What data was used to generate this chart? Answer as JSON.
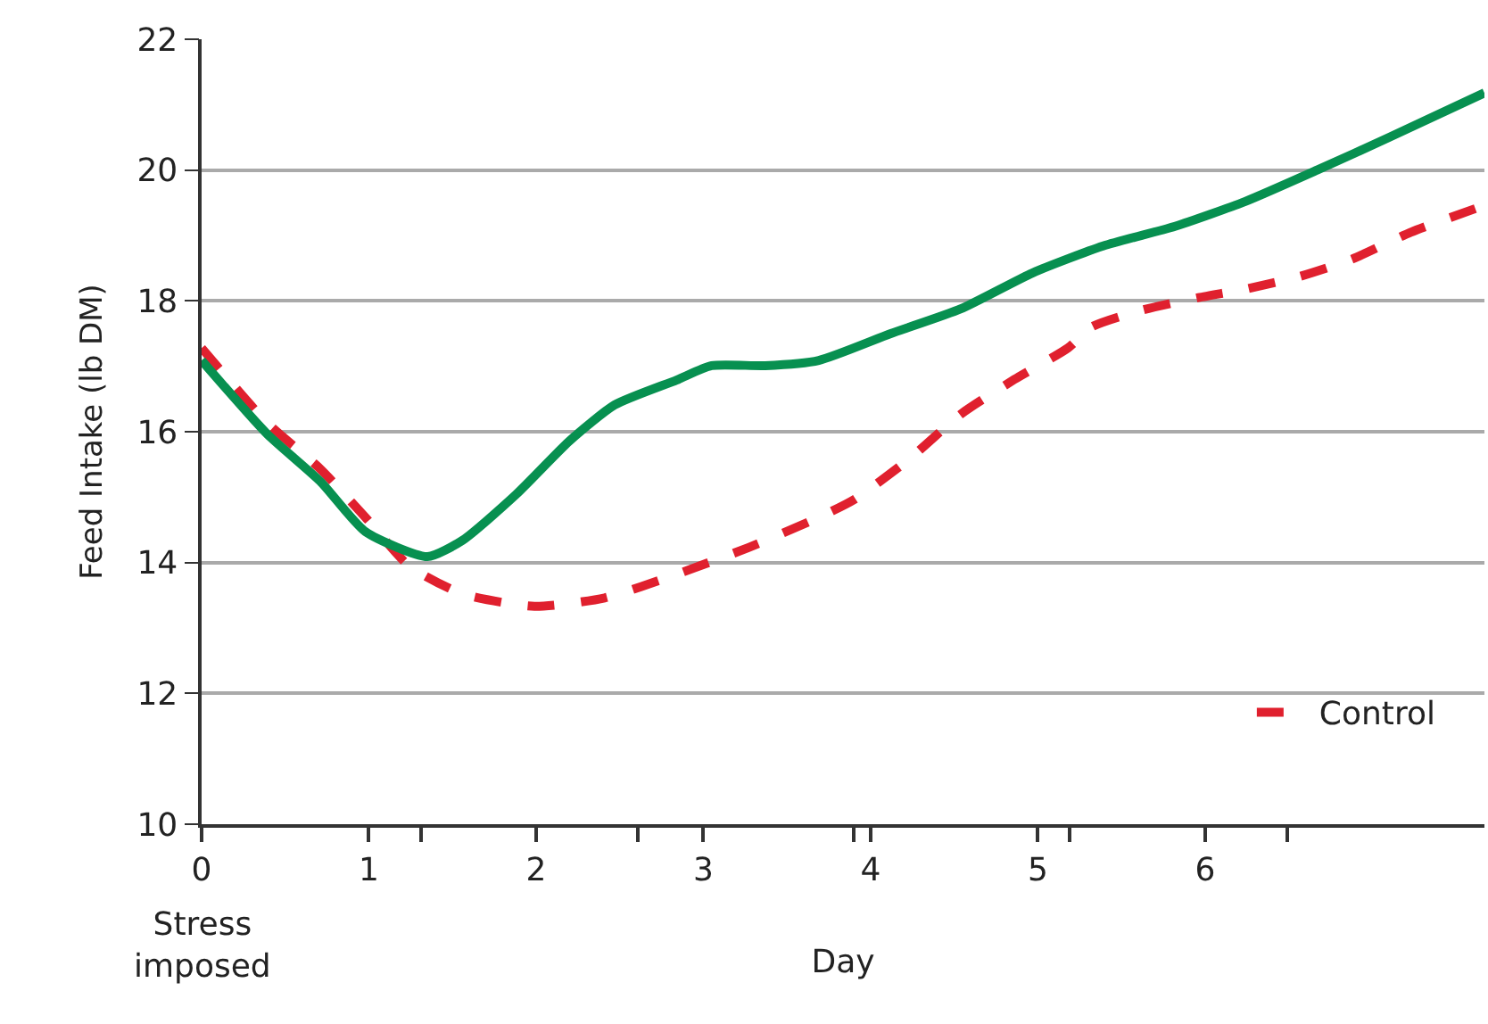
{
  "chart_data": {
    "type": "line",
    "xlabel": "Day",
    "ylabel": "Feed Intake (lb DM)",
    "annotations": [
      "Stress imposed"
    ],
    "series": [
      {
        "name": "Control",
        "color": "#e0202e",
        "line_style": "dashed",
        "x": [
          0,
          0.39,
          0.71,
          0.98,
          1.24,
          1.56,
          1.99,
          2.41,
          2.84,
          3.27,
          3.69,
          3.9,
          4.22,
          4.54,
          4.86,
          5.18,
          5.32,
          5.61,
          5.96,
          6.24,
          6.56,
          6.88,
          7.23,
          7.67
        ],
        "values": [
          17.28,
          16.14,
          15.43,
          14.69,
          13.95,
          13.52,
          13.33,
          13.46,
          13.82,
          14.23,
          14.69,
          14.96,
          15.56,
          16.27,
          16.8,
          17.28,
          17.6,
          17.85,
          18.05,
          18.18,
          18.37,
          18.64,
          19.05,
          19.46
        ]
      },
      {
        "color": "#079050",
        "line_style": "solid",
        "x": [
          0,
          0.39,
          0.71,
          0.98,
          1.35,
          1.56,
          1.88,
          2.2,
          2.47,
          2.84,
          3.05,
          3.37,
          3.69,
          4.12,
          4.54,
          4.97,
          5.39,
          5.82,
          6.24,
          6.67,
          7.1,
          7.67
        ],
        "values": [
          17.09,
          15.97,
          15.24,
          14.47,
          14.09,
          14.34,
          15.04,
          15.86,
          16.41,
          16.79,
          17.01,
          17.01,
          17.09,
          17.5,
          17.88,
          18.43,
          18.84,
          19.14,
          19.52,
          20.0,
          20.5,
          21.18
        ]
      }
    ],
    "xlim": [
      0,
      7.67
    ],
    "xticks": [
      0,
      1,
      2,
      3,
      4,
      5,
      6,
      {
        "value": 1.31,
        "label": null
      },
      {
        "value": 2.61,
        "label": null
      },
      {
        "value": 3.9,
        "label": null
      },
      {
        "value": 5.19,
        "label": null
      },
      {
        "value": 6.49,
        "label": null
      }
    ],
    "ylim": [
      10,
      22
    ],
    "yticks": [
      10,
      12,
      14,
      16,
      18,
      20,
      22
    ],
    "grid": "y",
    "legend": "bottom right",
    "marker": "none"
  }
}
